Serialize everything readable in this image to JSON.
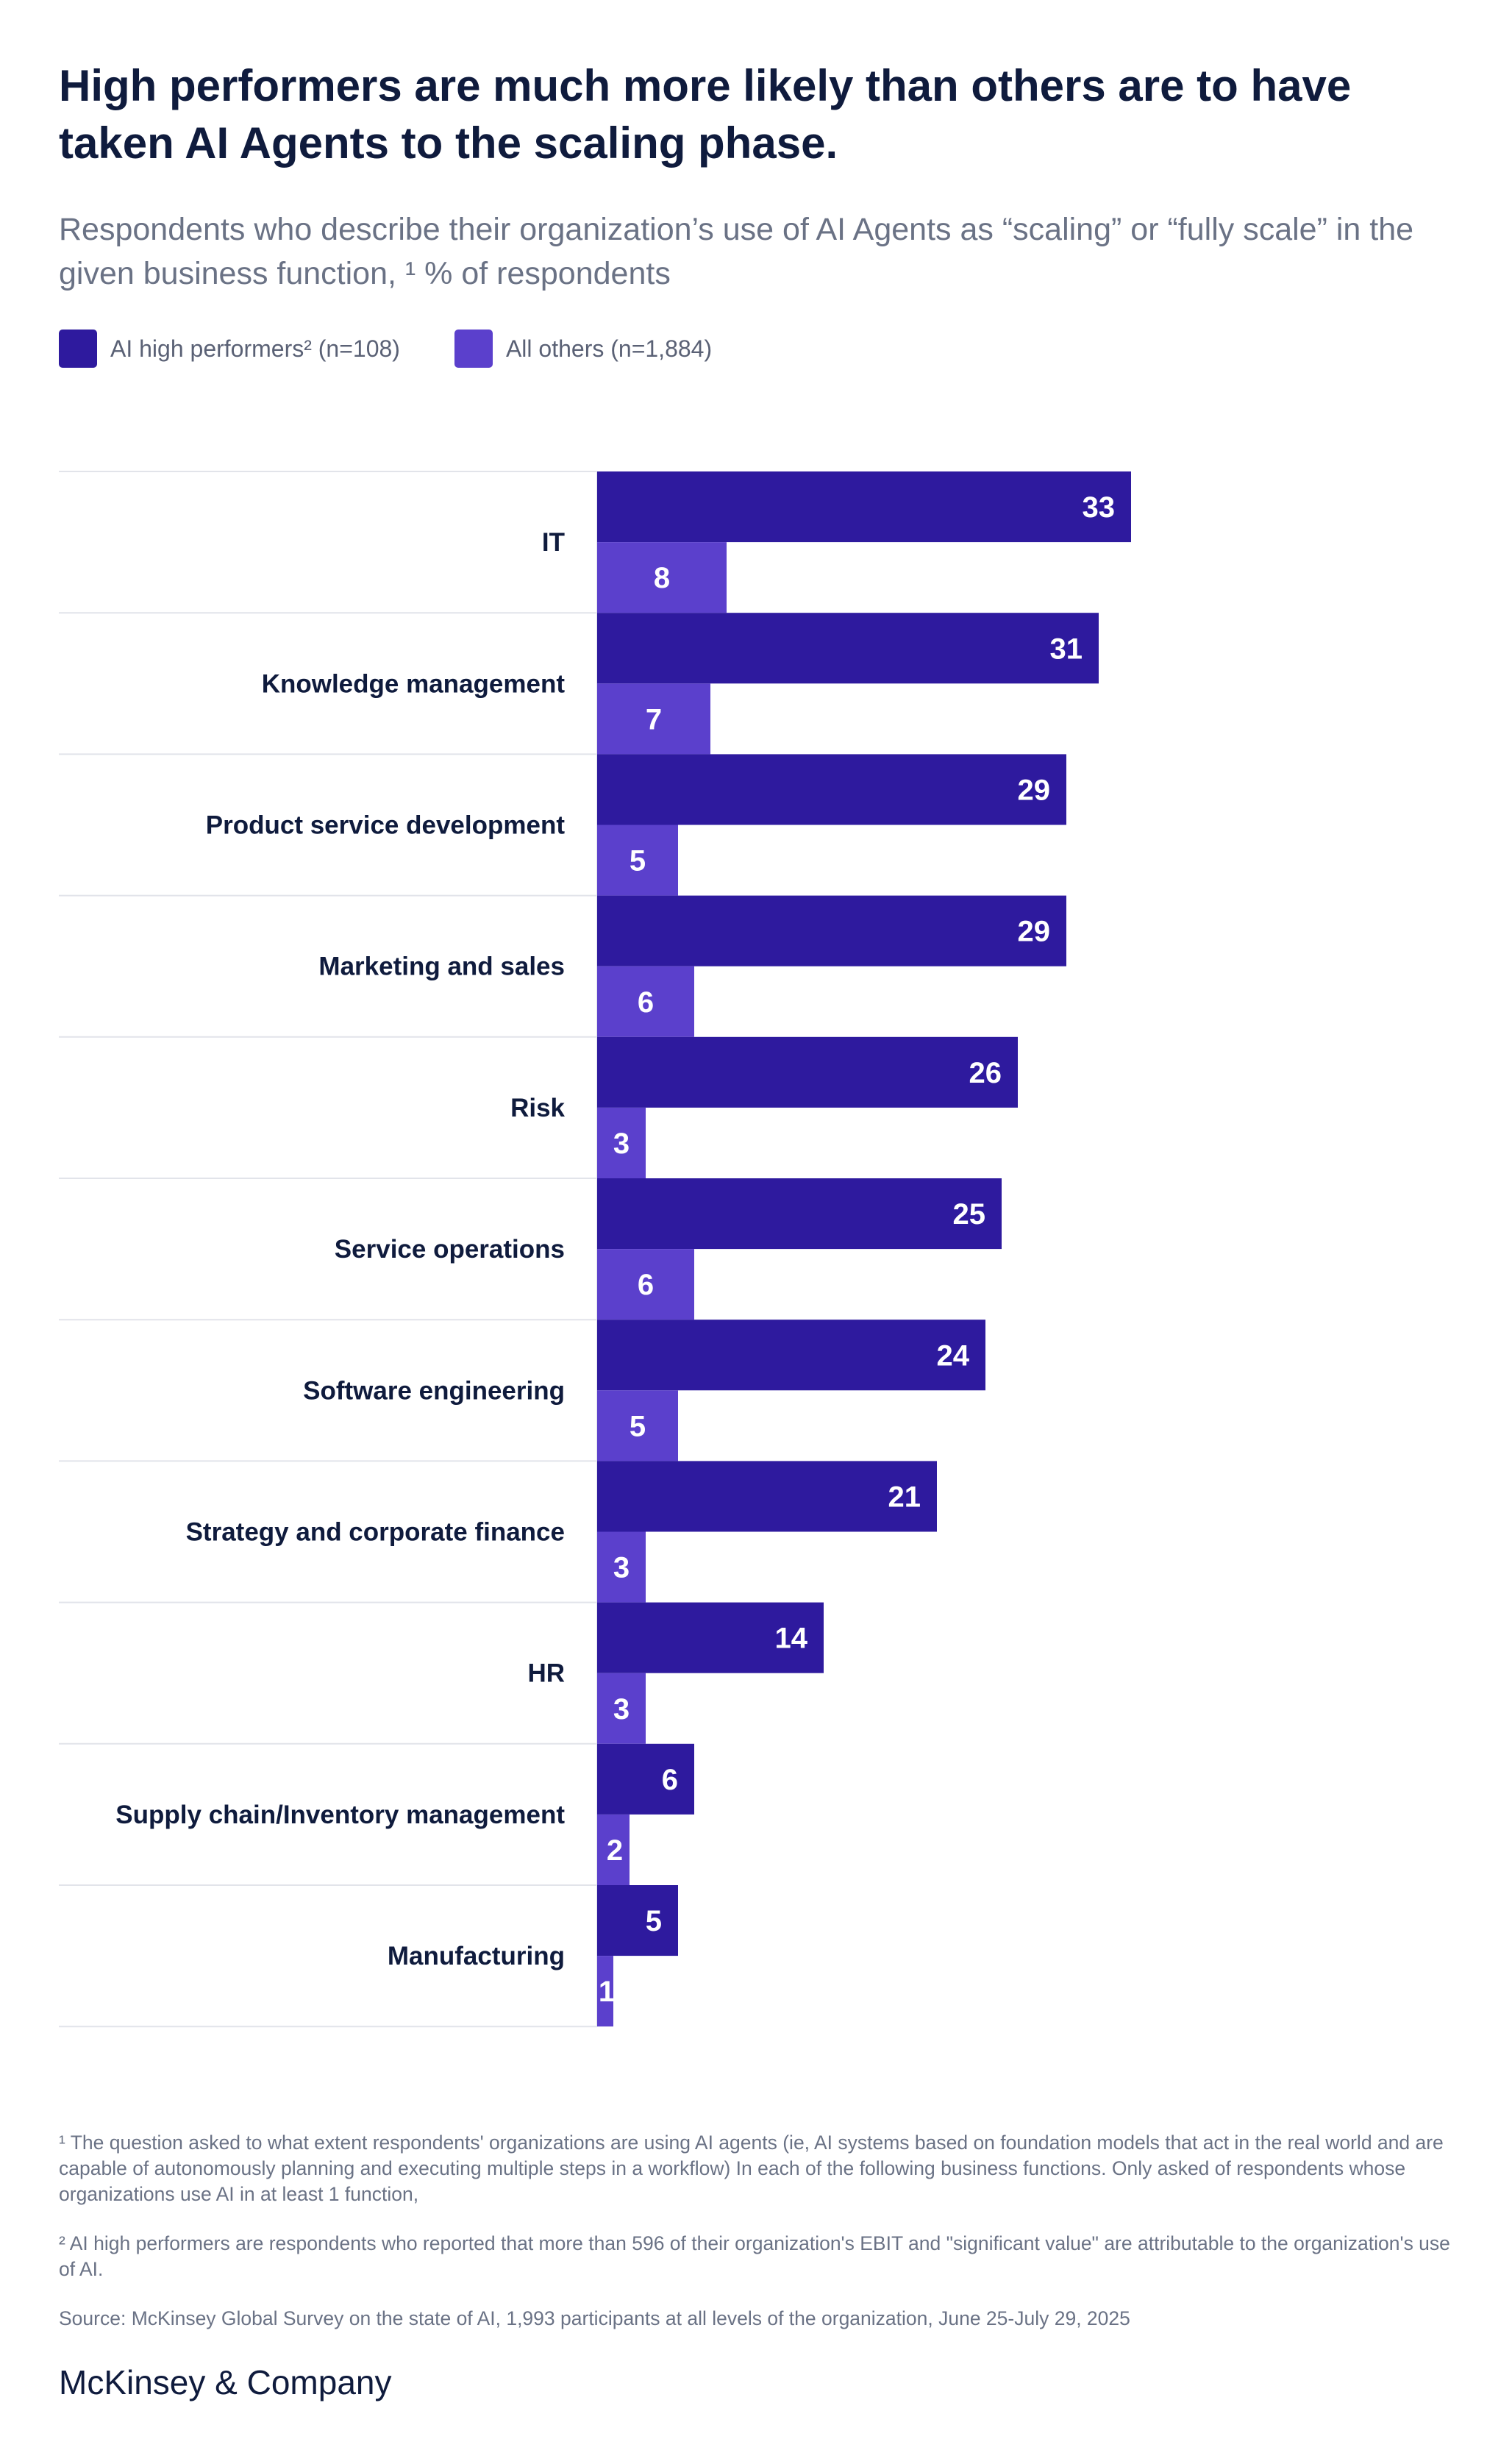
{
  "title": "High performers are much more likely than others are to have taken AI Agents to the scaling phase.",
  "subtitle": "Respondents who describe their organization’s use of AI Agents as “scaling” or “fully scale” in the given business function, ¹ % of respondents",
  "legend": {
    "series1": "AI high performers² (n=108)",
    "series2": "All others (n=1,884)"
  },
  "colors": {
    "series1": "#2e1a9e",
    "series2": "#5b40cc",
    "gridline": "#e2e4ea"
  },
  "chart_data": {
    "type": "bar",
    "orientation": "horizontal",
    "title": "High performers are much more likely than others are to have taken AI Agents to the scaling phase.",
    "ylabel": "% of respondents",
    "categories": [
      "IT",
      "Knowledge management",
      "Product service development",
      "Marketing and sales",
      "Risk",
      "Service operations",
      "Software engineering",
      "Strategy and corporate finance",
      "HR",
      "Supply chain/Inventory management",
      "Manufacturing"
    ],
    "series": [
      {
        "name": "AI high performers² (n=108)",
        "values": [
          33,
          31,
          29,
          29,
          26,
          25,
          24,
          21,
          14,
          6,
          5
        ]
      },
      {
        "name": "All others (n=1,884)",
        "values": [
          8,
          7,
          5,
          6,
          3,
          6,
          5,
          3,
          3,
          2,
          1
        ]
      }
    ],
    "xlim": [
      0,
      100
    ]
  },
  "notes": {
    "footnote1": "¹ The question asked to what extent respondents' organizations are using AI agents (ie, AI systems based on foundation models that act in the real world and are capable of autonomously planning and executing multiple steps in a workflow) In each of the following business functions. Only asked of respondents whose organizations use AI in at least 1 function,",
    "footnote2": "² AI high performers are respondents who reported that more than 596 of their organization's EBIT and \"significant value\" are attributable to the organization's use of AI.",
    "source": "Source: McKinsey Global Survey on the state of AI, 1,993 participants at all levels of the organization, June 25-July 29, 2025"
  },
  "brand": "McKinsey & Company"
}
